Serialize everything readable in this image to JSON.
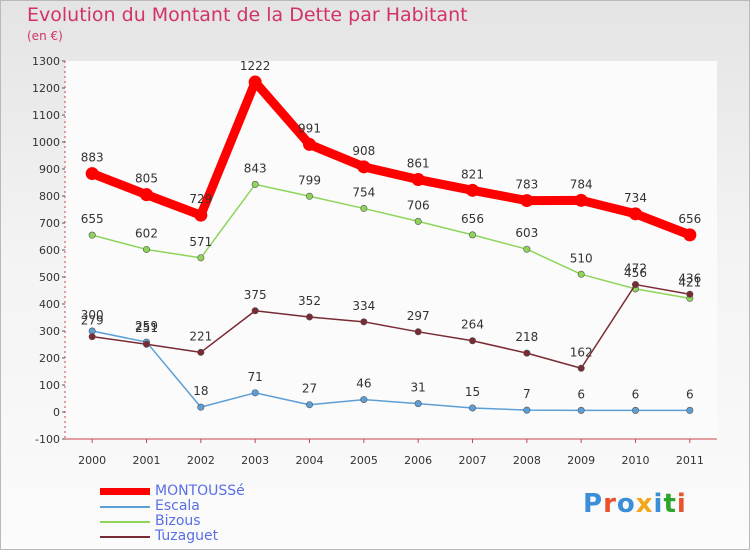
{
  "title": "Evolution du Montant de la Dette par Habitant",
  "subtitle": "(en €)",
  "logo": {
    "text": "Proxiti",
    "colors": [
      "#3b8fd9",
      "#e8532d",
      "#3b8fd9",
      "#f2a81c",
      "#3b8fd9",
      "#2da52d",
      "#e8532d"
    ]
  },
  "chart_data": {
    "type": "line",
    "x": [
      "2000",
      "2001",
      "2002",
      "2003",
      "2004",
      "2005",
      "2006",
      "2007",
      "2008",
      "2009",
      "2010",
      "2011"
    ],
    "y_ticks": [
      "1300",
      "1200",
      "1100",
      "1000",
      "900",
      "800",
      "700",
      "600",
      "500",
      "400",
      "300",
      "200",
      "100",
      "0",
      "-100"
    ],
    "ylim": [
      -100,
      1300
    ],
    "grid": false,
    "legend_position": "bottom-left",
    "series": [
      {
        "name": "MONTOUSSé",
        "color": "#ff0000",
        "emphasis": true,
        "values": [
          883,
          805,
          729,
          1222,
          991,
          908,
          861,
          821,
          783,
          784,
          734,
          656
        ]
      },
      {
        "name": "Escala",
        "color": "#5c9fd6",
        "values": [
          300,
          259,
          18,
          71,
          27,
          46,
          31,
          15,
          7,
          6,
          6,
          6
        ]
      },
      {
        "name": "Bizous",
        "color": "#8ed45b",
        "values": [
          655,
          602,
          571,
          843,
          799,
          754,
          706,
          656,
          603,
          510,
          456,
          421
        ]
      },
      {
        "name": "Tuzaguet",
        "color": "#7a2a34",
        "values": [
          279,
          251,
          221,
          375,
          352,
          334,
          297,
          264,
          218,
          162,
          472,
          436
        ]
      }
    ]
  }
}
